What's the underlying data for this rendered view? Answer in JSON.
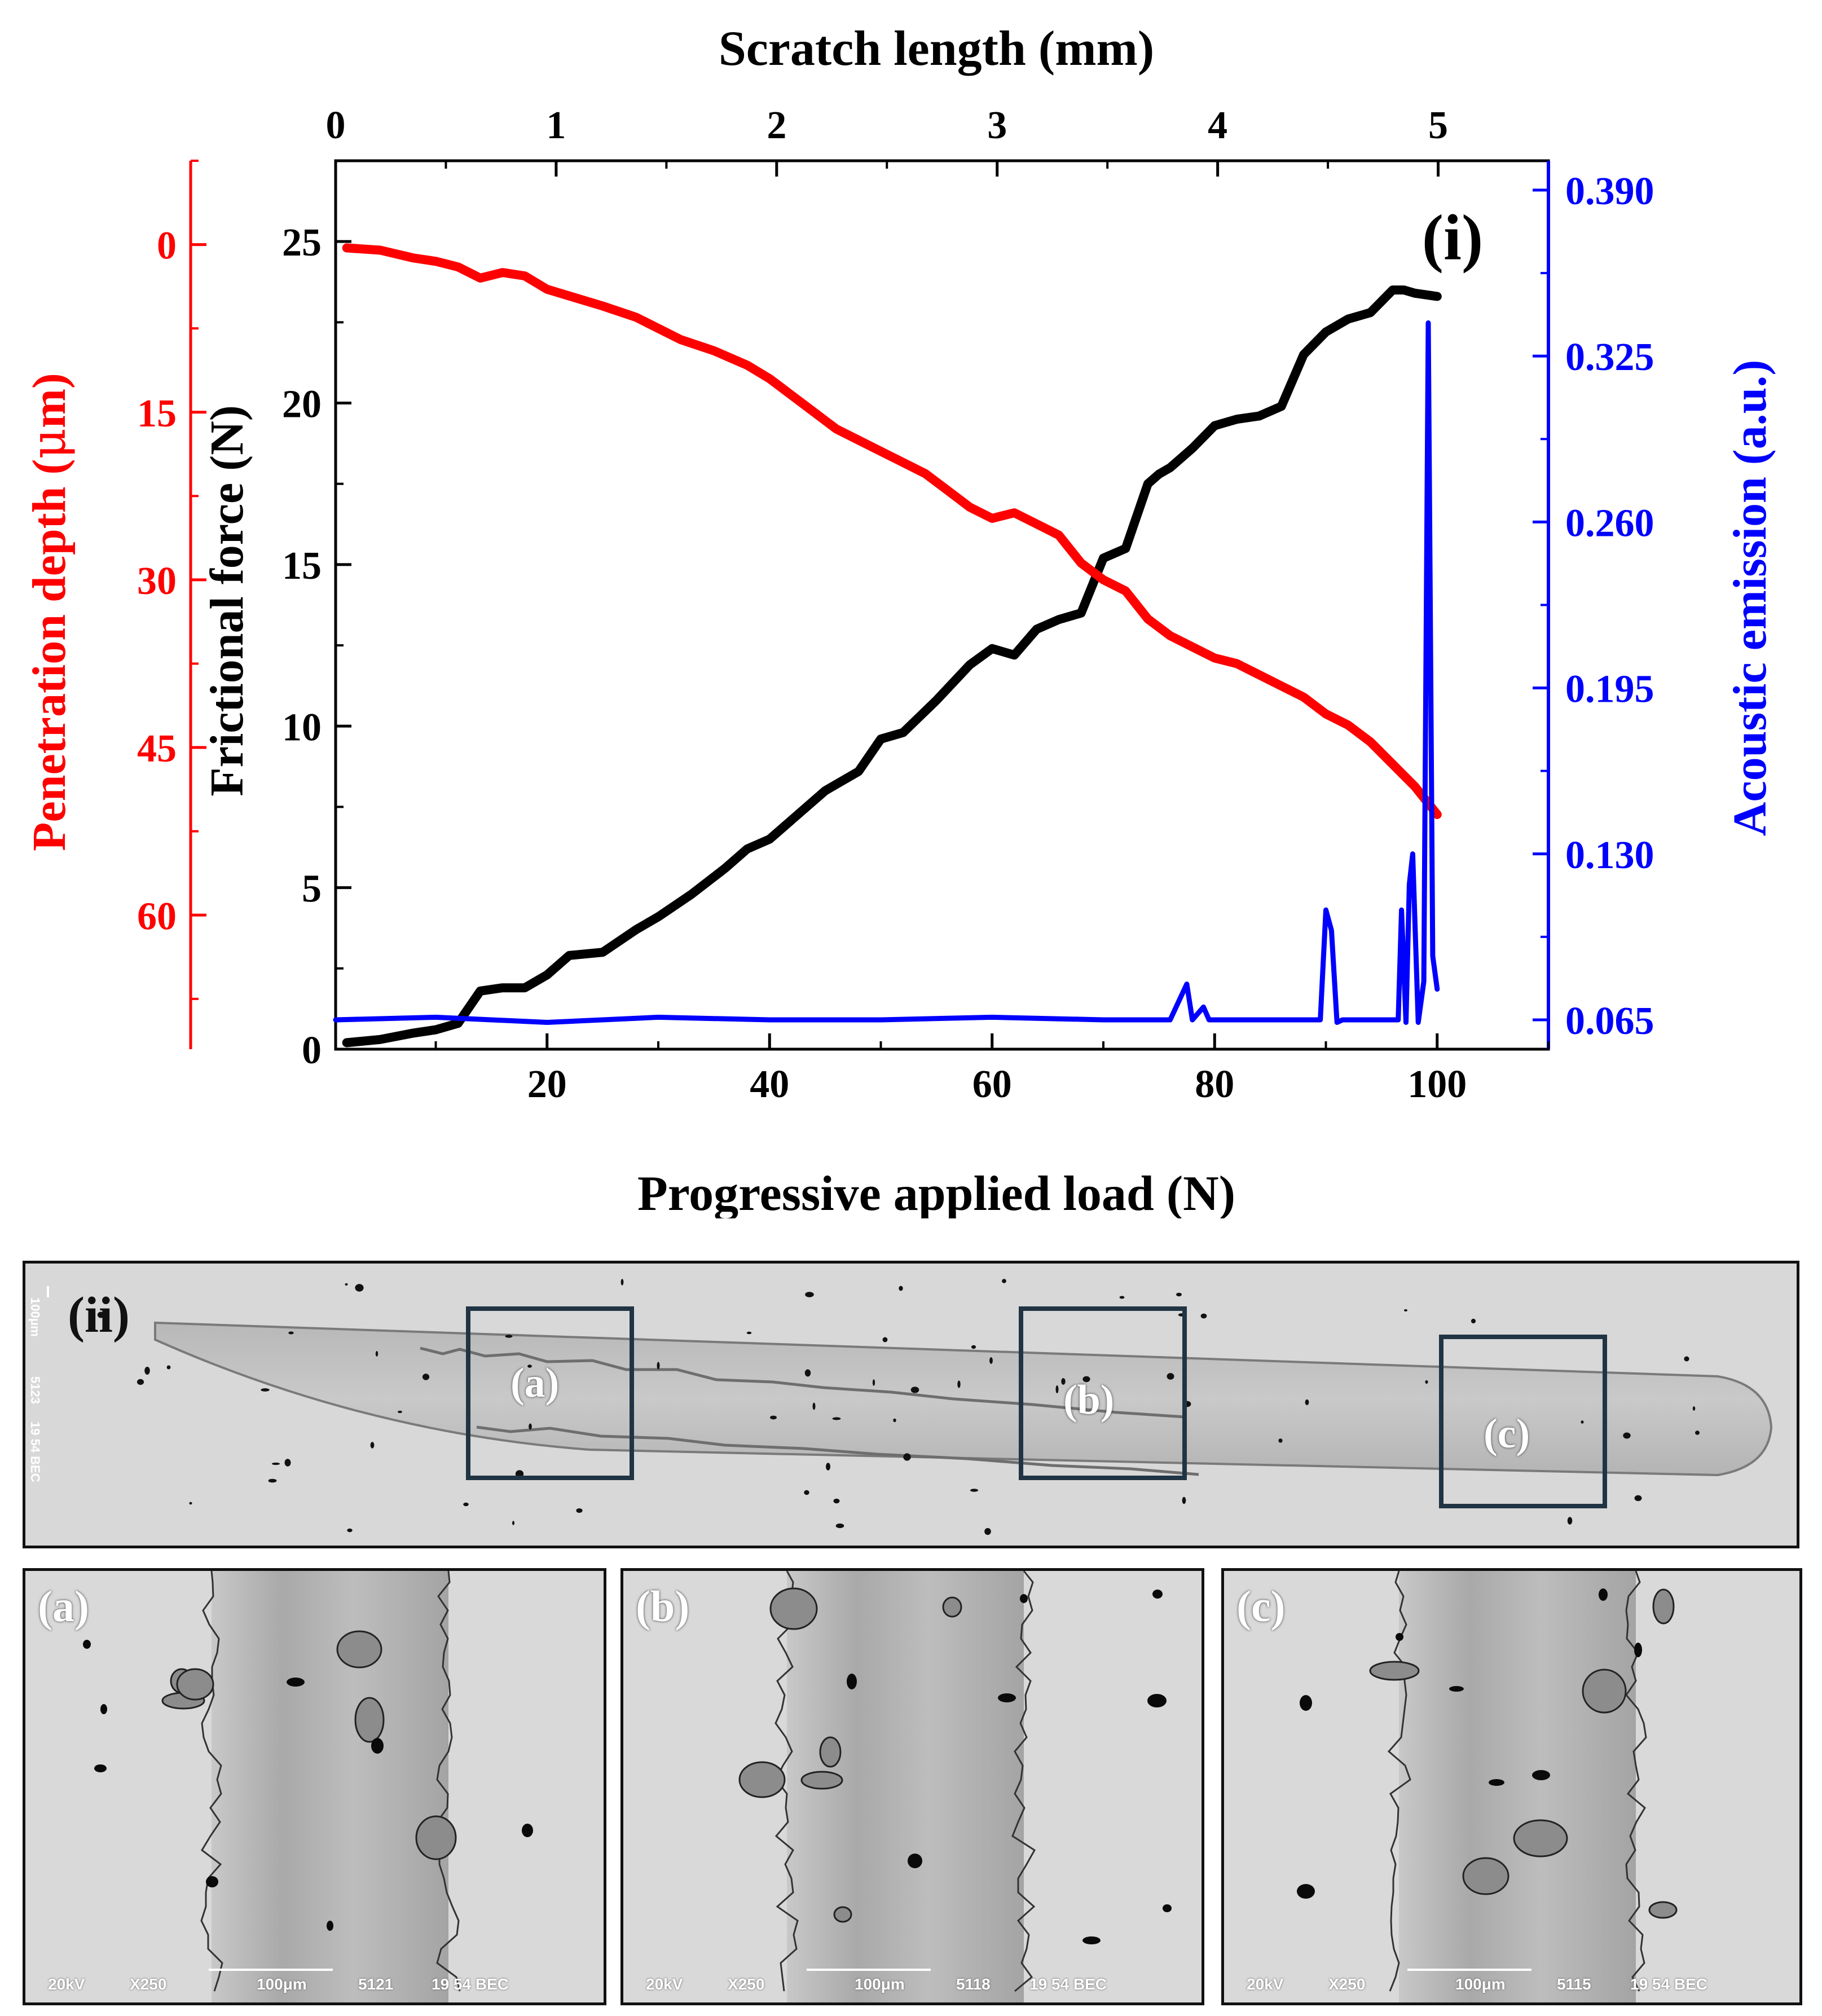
{
  "colors": {
    "frictional": "#000000",
    "penetration": "#ff0000",
    "acoustic": "#0000ff",
    "box": "#203444"
  },
  "chart_data": {
    "type": "line",
    "panel_label": "(i)",
    "top_axis": {
      "label": "Scratch length (mm)",
      "range": [
        0,
        5.5
      ],
      "ticks": [
        0,
        1,
        2,
        3,
        4,
        5
      ],
      "tick_labels": [
        "0",
        "1",
        "2",
        "3",
        "4",
        "5"
      ]
    },
    "x_axis": {
      "label": "Progressive applied load (N)",
      "range": [
        1,
        110
      ],
      "ticks": [
        20,
        40,
        60,
        80,
        100
      ],
      "tick_labels": [
        "20",
        "40",
        "60",
        "80",
        "100"
      ]
    },
    "y_left": {
      "label": "Frictional force (N)",
      "range": [
        0,
        27.5
      ],
      "ticks": [
        0,
        5,
        10,
        15,
        20,
        25
      ],
      "tick_labels": [
        "0",
        "5",
        "10",
        "15",
        "20",
        "25"
      ]
    },
    "y_left_outer": {
      "label_main": "Penetration depth (",
      "label_mu": "μ",
      "label_end": "m)",
      "range": [
        72,
        -7.5
      ],
      "ticks": [
        0,
        15,
        30,
        45,
        60
      ],
      "tick_labels": [
        "0",
        "15",
        "30",
        "45",
        "60"
      ],
      "inverted": true
    },
    "y_right": {
      "label": "Acoustic emission (a.u.)",
      "range": [
        0.0535,
        0.4015
      ],
      "ticks": [
        0.065,
        0.13,
        0.195,
        0.26,
        0.325,
        0.39
      ],
      "tick_labels": [
        "0.065",
        "0.130",
        "0.195",
        "0.260",
        "0.325",
        "0.390"
      ]
    },
    "series": [
      {
        "name": "Frictional force",
        "axis": "left",
        "x": [
          2,
          5,
          8,
          10,
          12,
          14,
          16,
          18,
          20,
          22,
          25,
          28,
          30,
          33,
          36,
          38,
          40,
          42,
          45,
          48,
          50,
          52,
          55,
          58,
          60,
          62,
          64,
          66,
          68,
          70,
          72,
          74,
          75,
          76,
          78,
          80,
          82,
          84,
          86,
          88,
          90,
          92,
          94,
          96,
          97,
          98,
          100
        ],
        "values": [
          0.2,
          0.3,
          0.5,
          0.6,
          0.8,
          1.8,
          1.9,
          1.9,
          2.3,
          2.9,
          3.0,
          3.7,
          4.1,
          4.8,
          5.6,
          6.2,
          6.5,
          7.1,
          8.0,
          8.6,
          9.6,
          9.8,
          10.8,
          11.9,
          12.4,
          12.2,
          13.0,
          13.3,
          13.5,
          15.2,
          15.5,
          17.5,
          17.8,
          18.0,
          18.6,
          19.3,
          19.5,
          19.6,
          19.9,
          21.5,
          22.2,
          22.6,
          22.8,
          23.5,
          23.5,
          23.4,
          23.3
        ]
      },
      {
        "name": "Penetration depth",
        "axis": "left_outer",
        "x": [
          2,
          5,
          8,
          10,
          12,
          14,
          16,
          18,
          20,
          22,
          25,
          28,
          30,
          32,
          35,
          38,
          40,
          42,
          44,
          46,
          48,
          50,
          52,
          54,
          56,
          58,
          60,
          62,
          64,
          66,
          68,
          70,
          72,
          74,
          76,
          78,
          80,
          82,
          84,
          86,
          88,
          90,
          92,
          94,
          96,
          98,
          100
        ],
        "values": [
          0.3,
          0.5,
          1.2,
          1.5,
          2.0,
          3.0,
          2.5,
          2.8,
          4.0,
          4.6,
          5.5,
          6.5,
          7.5,
          8.5,
          9.5,
          10.8,
          12.0,
          13.5,
          15.0,
          16.5,
          17.5,
          18.5,
          19.5,
          20.5,
          22.0,
          23.5,
          24.5,
          24.0,
          25.0,
          26.0,
          28.5,
          30.0,
          31.0,
          33.5,
          35.0,
          36.0,
          37.0,
          37.5,
          38.5,
          39.5,
          40.5,
          42.0,
          43.0,
          44.5,
          46.5,
          48.5,
          51.0
        ]
      },
      {
        "name": "Acoustic emission",
        "axis": "right",
        "x": [
          1,
          10,
          20,
          30,
          40,
          50,
          60,
          70,
          76,
          77.5,
          78,
          79,
          79.5,
          80,
          85,
          89.5,
          90,
          90.5,
          91,
          91.5,
          92,
          95,
          96.5,
          96.8,
          97.2,
          97.5,
          97.8,
          98.3,
          98.8,
          99.2,
          99.6,
          100
        ],
        "values": [
          0.065,
          0.066,
          0.064,
          0.066,
          0.065,
          0.065,
          0.066,
          0.065,
          0.065,
          0.079,
          0.065,
          0.07,
          0.065,
          0.065,
          0.065,
          0.065,
          0.108,
          0.1,
          0.064,
          0.065,
          0.065,
          0.065,
          0.065,
          0.108,
          0.064,
          0.118,
          0.13,
          0.064,
          0.08,
          0.338,
          0.09,
          0.077
        ]
      }
    ]
  },
  "sem": {
    "overview": {
      "label": "(ii)",
      "side_text": [
        "100μm",
        "5123",
        "19 54 BEC"
      ],
      "boxes": [
        {
          "label": "(a)"
        },
        {
          "label": "(b)"
        },
        {
          "label": "(c)"
        }
      ]
    },
    "panels": [
      {
        "label": "(a)",
        "kv": "20kV",
        "mag": "X250",
        "scale": "100μm",
        "id": "5121",
        "info": "19 54 BEC"
      },
      {
        "label": "(b)",
        "kv": "20kV",
        "mag": "X250",
        "scale": "100μm",
        "id": "5118",
        "info": "19 54 BEC"
      },
      {
        "label": "(c)",
        "kv": "20kV",
        "mag": "X250",
        "scale": "100μm",
        "id": "5115",
        "info": "19 54 BEC"
      }
    ]
  }
}
